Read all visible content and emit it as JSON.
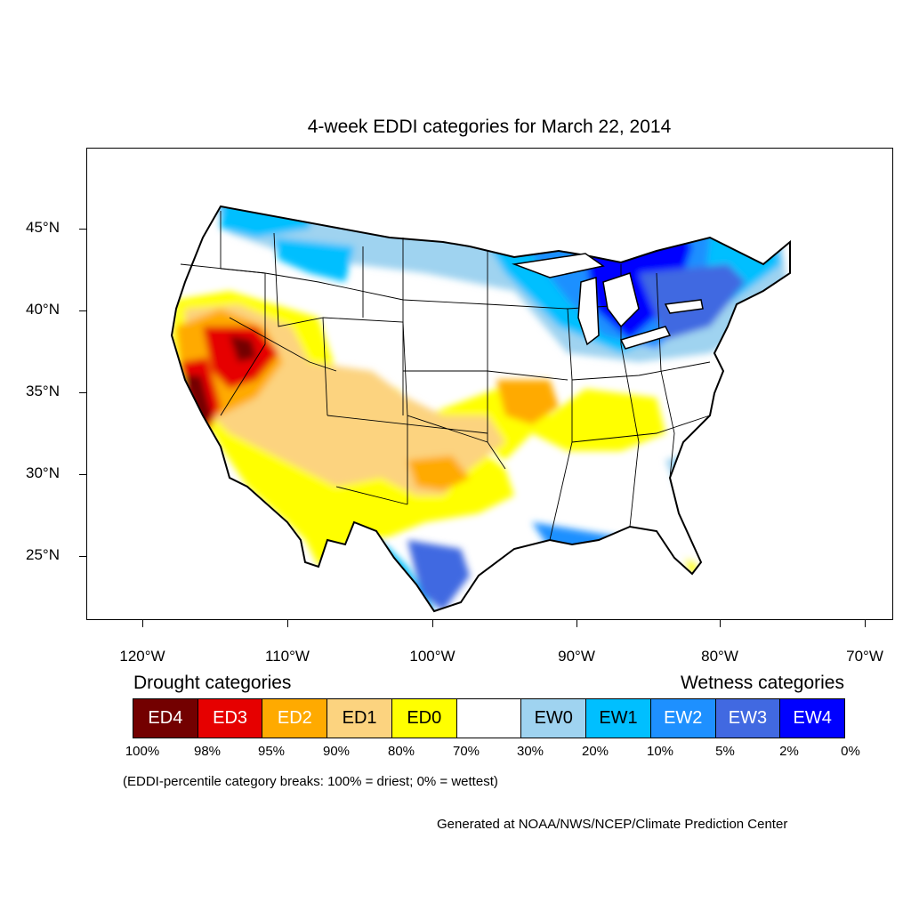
{
  "title": "4-week EDDI categories for March 22, 2014",
  "latitude_labels": [
    "45°N",
    "40°N",
    "35°N",
    "30°N",
    "25°N"
  ],
  "longitude_labels": [
    "120°W",
    "110°W",
    "100°W",
    "90°W",
    "80°W",
    "70°W"
  ],
  "legend": {
    "drought_heading": "Drought categories",
    "wetness_heading": "Wetness categories",
    "categories": [
      {
        "label": "ED4",
        "color": "#730000",
        "text_color": "#ffffff"
      },
      {
        "label": "ED3",
        "color": "#e60000",
        "text_color": "#ffffff"
      },
      {
        "label": "ED2",
        "color": "#ffaa00",
        "text_color": "#ffffff"
      },
      {
        "label": "ED1",
        "color": "#fcd37f",
        "text_color": "#000000"
      },
      {
        "label": "ED0",
        "color": "#ffff00",
        "text_color": "#000000"
      },
      {
        "label": "",
        "color": "#ffffff",
        "text_color": "#000000"
      },
      {
        "label": "EW0",
        "color": "#9fd3f0",
        "text_color": "#000000"
      },
      {
        "label": "EW1",
        "color": "#00bfff",
        "text_color": "#000000"
      },
      {
        "label": "EW2",
        "color": "#1e90ff",
        "text_color": "#ffffff"
      },
      {
        "label": "EW3",
        "color": "#4169e1",
        "text_color": "#ffffff"
      },
      {
        "label": "EW4",
        "color": "#0000ff",
        "text_color": "#ffffff"
      }
    ],
    "percentiles": [
      "100%",
      "98%",
      "95%",
      "90%",
      "80%",
      "70%",
      "30%",
      "20%",
      "10%",
      "5%",
      "2%",
      "0%"
    ]
  },
  "note": "(EDDI-percentile category breaks: 100% = driest; 0% = wettest)",
  "credit": "Generated at NOAA/NWS/NCEP/Climate Prediction Center"
}
